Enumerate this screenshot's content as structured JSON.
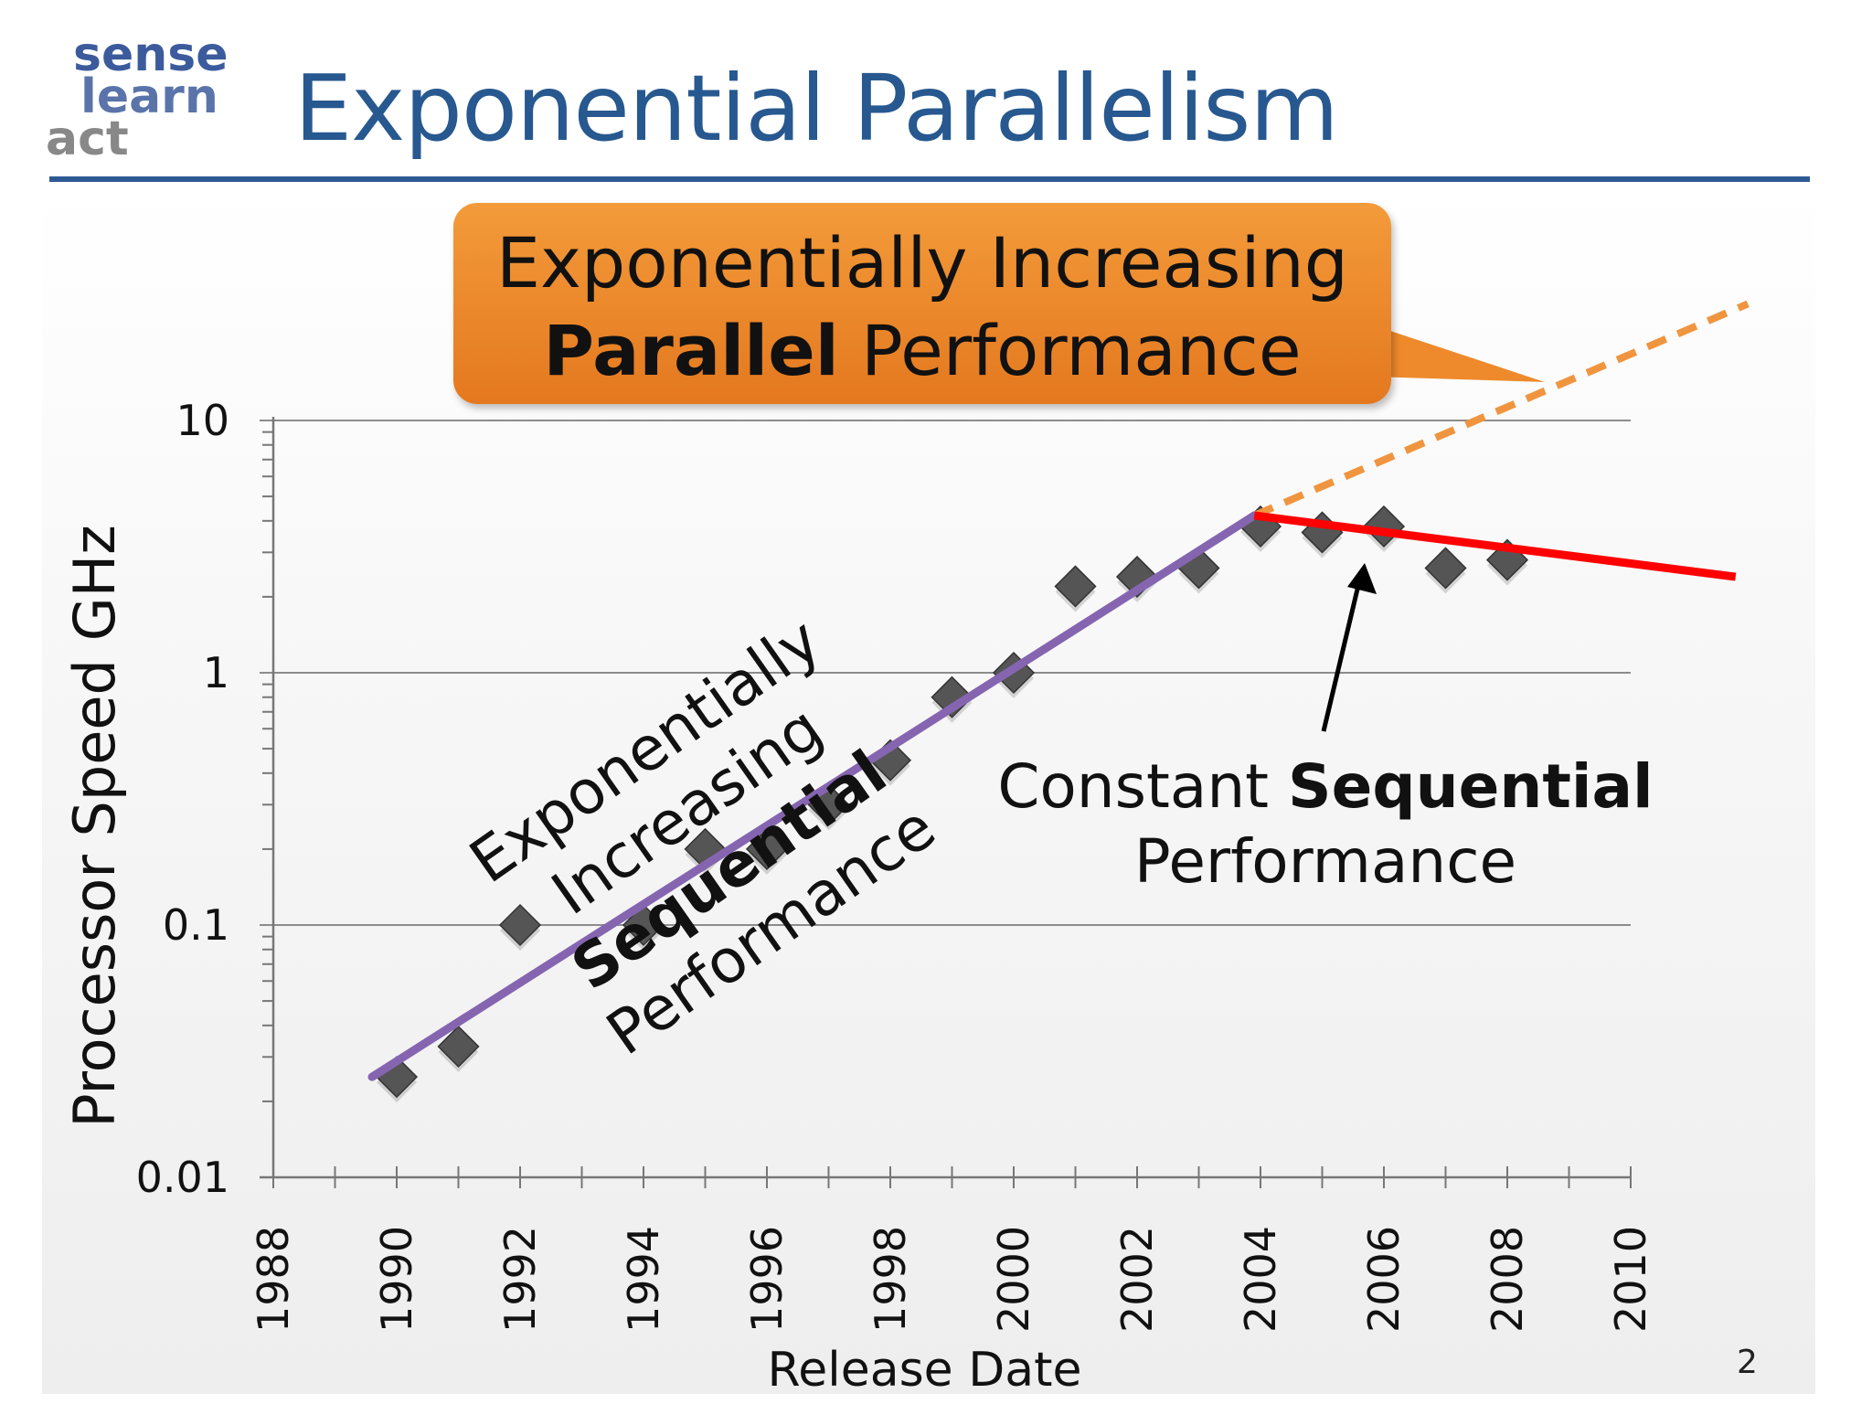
{
  "logo": {
    "line1": "sense",
    "line2": "learn",
    "line3": "act"
  },
  "slide": {
    "title": "Exponential Parallelism",
    "callout": {
      "line1": "Exponentially Increasing",
      "bold": "Parallel",
      "rest": " Performance"
    },
    "sequential_label": {
      "line1": "Exponentially Increasing",
      "bold": "Sequential",
      "rest": " Performance"
    },
    "constant_label": {
      "plain": "Constant ",
      "bold": "Sequential",
      "line2": "Performance"
    },
    "page_number": "2"
  },
  "colors": {
    "title": "#27588f",
    "rule": "#2e5a93",
    "callout": "#ee8a2b",
    "trend_rising": "#8565b0",
    "trend_flat": "#ff0000",
    "trend_projected": "#f0953f",
    "markers": "#555555",
    "logo_blue": "#3b5b9c",
    "logo_gray": "#9a9a9a"
  },
  "chart_data": {
    "type": "scatter",
    "xlabel": "Release Date",
    "ylabel": "Processor Speed GHz",
    "x_ticks": [
      "1988",
      "1990",
      "1992",
      "1994",
      "1996",
      "1998",
      "2000",
      "2002",
      "2004",
      "2006",
      "2008",
      "2010"
    ],
    "y_ticks": [
      "0.01",
      "0.1",
      "1",
      "10"
    ],
    "xlim": [
      1988,
      2010
    ],
    "ylim": [
      0.01,
      10
    ],
    "y_scale": "log",
    "grid": "horizontal at decades",
    "series": [
      {
        "values": [
          [
            1990,
            0.025
          ],
          [
            1991,
            0.033
          ],
          [
            1992,
            0.1
          ],
          [
            1994,
            0.1
          ],
          [
            1995,
            0.2
          ],
          [
            1996,
            0.2
          ],
          [
            1997,
            0.3
          ],
          [
            1998,
            0.45
          ],
          [
            1999,
            0.8
          ],
          [
            2000,
            1.0
          ],
          [
            2001,
            2.2
          ],
          [
            2002,
            2.4
          ],
          [
            2003,
            2.6
          ],
          [
            2004,
            3.8
          ],
          [
            2005,
            3.6
          ],
          [
            2006,
            3.8
          ],
          [
            2007,
            2.6
          ],
          [
            2008,
            2.8
          ]
        ]
      }
    ],
    "trend_lines": [
      {
        "style": "solid purple",
        "from": [
          1989.6,
          0.025
        ],
        "to": [
          2003.9,
          4.2
        ]
      },
      {
        "style": "solid red",
        "from": [
          2003.9,
          4.2
        ],
        "to": [
          2011.7,
          2.4
        ]
      },
      {
        "style": "dashed orange",
        "from": [
          2003.9,
          4.2
        ],
        "to": [
          2011.9,
          29
        ]
      }
    ]
  }
}
